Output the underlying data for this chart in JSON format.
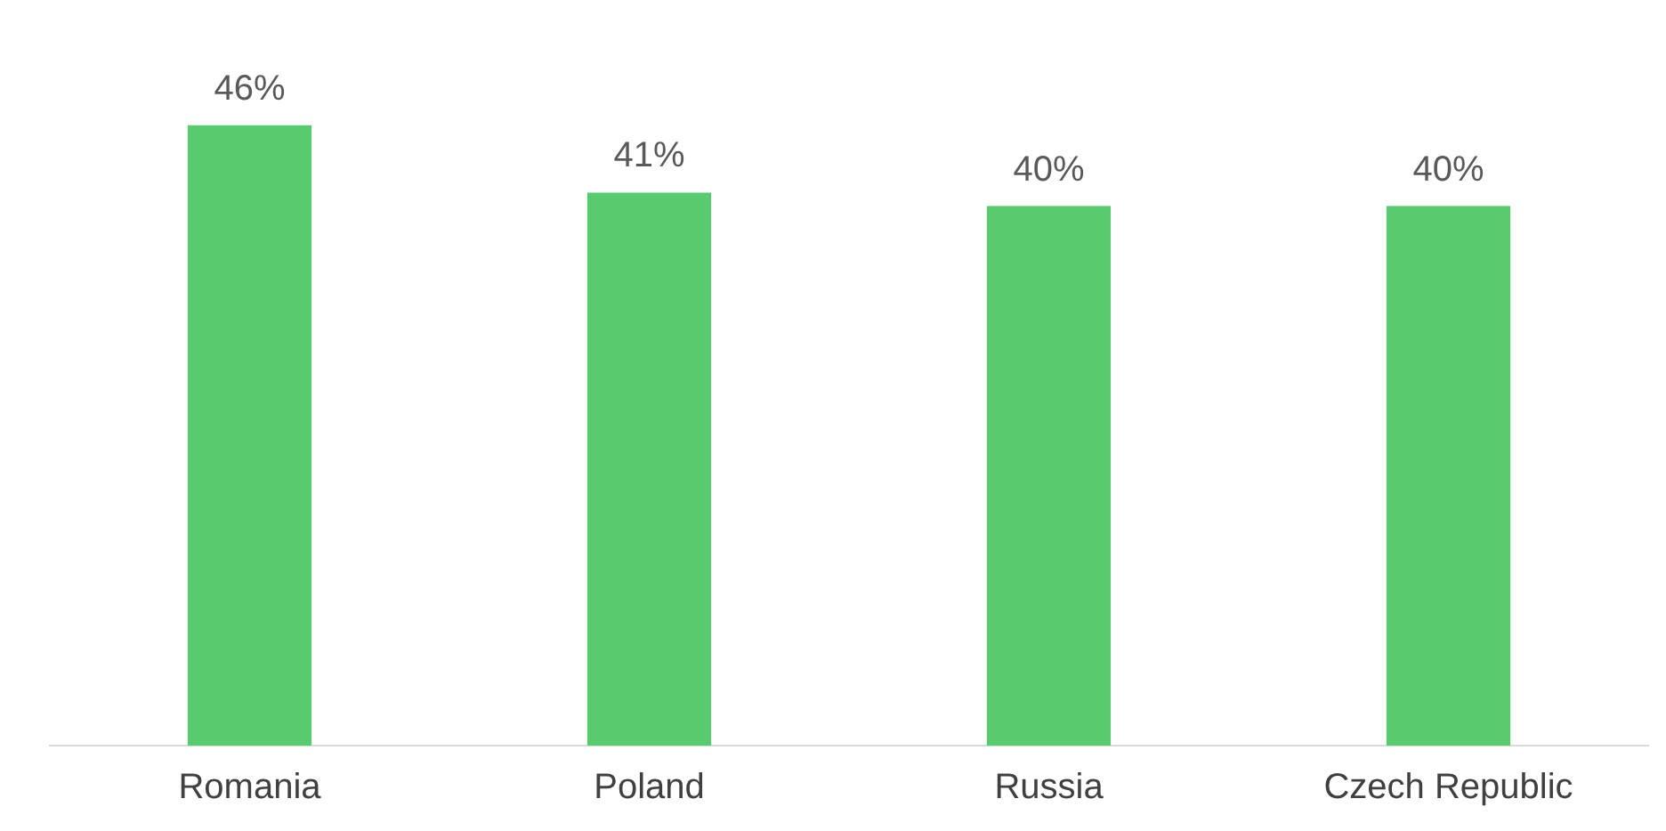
{
  "chart_data": {
    "type": "bar",
    "categories": [
      "Romania",
      "Poland",
      "Russia",
      "Czech Republic"
    ],
    "values": [
      46,
      41,
      40,
      40
    ],
    "value_labels": [
      "46%",
      "41%",
      "40%",
      "40%"
    ],
    "color": "#57cb6e",
    "tick_labels": "x",
    "grid": false,
    "legend": false
  }
}
